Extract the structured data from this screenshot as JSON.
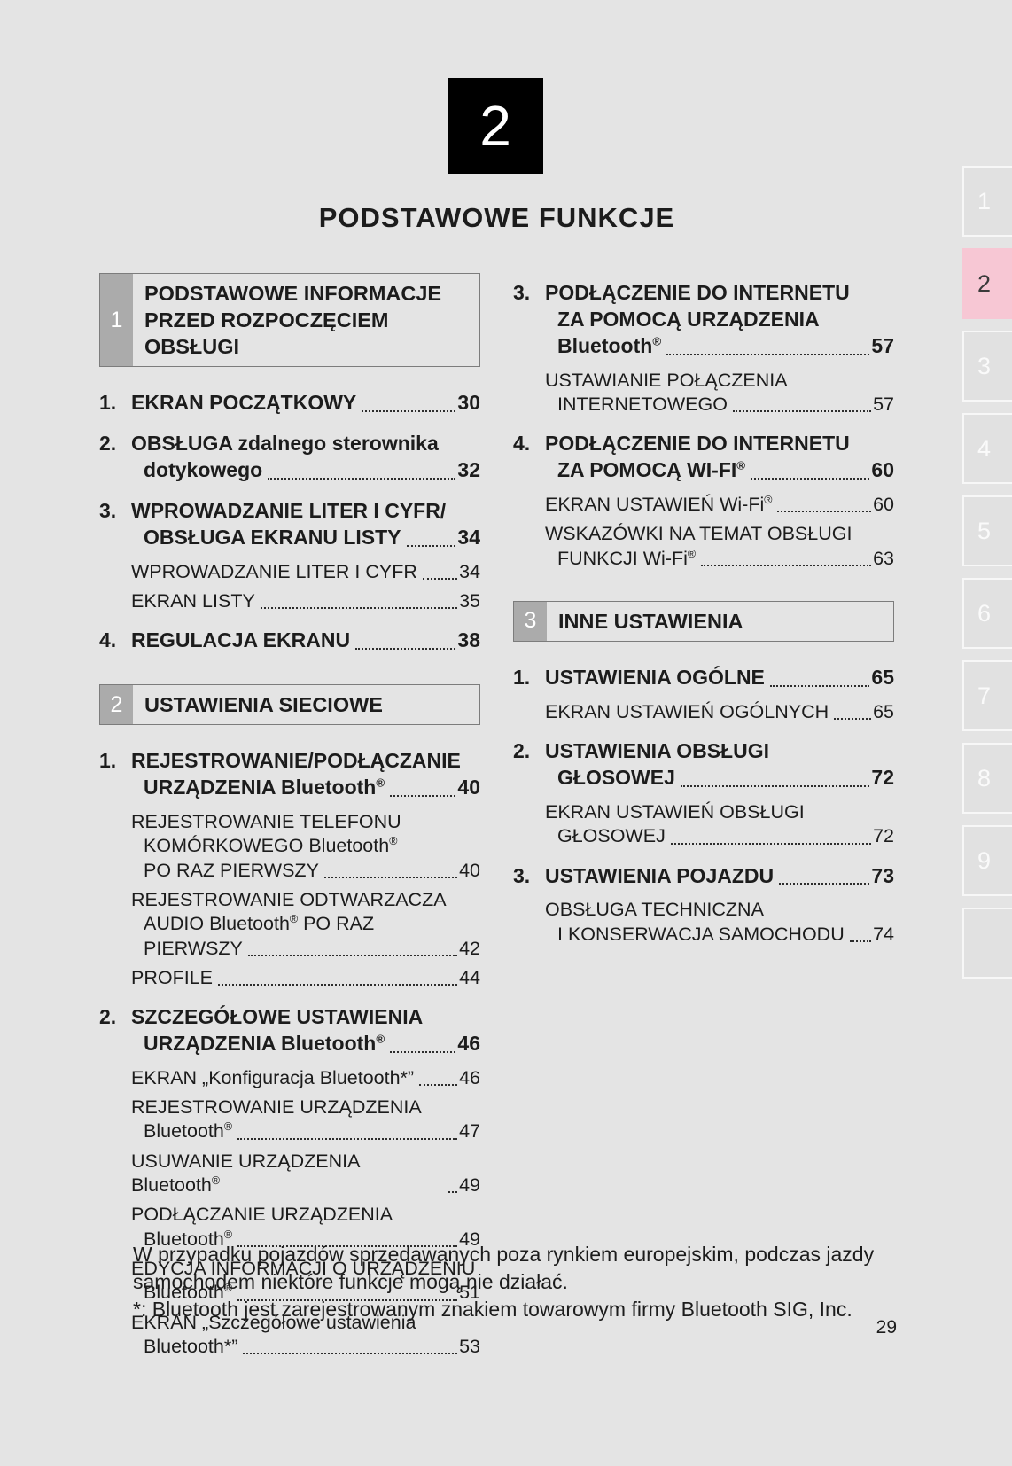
{
  "page": {
    "background": "#e4e4e4",
    "number": "29"
  },
  "chapter": {
    "number": "2",
    "title": "PODSTAWOWE FUNKCJE"
  },
  "tabs": {
    "active": "2",
    "active_color": "#f7c7d4",
    "items": [
      "1",
      "2",
      "3",
      "4",
      "5",
      "6",
      "7",
      "8",
      "9",
      ""
    ]
  },
  "toc": {
    "columns": [
      {
        "blocks": [
          {
            "type": "header",
            "num": "1",
            "title_lines": [
              "PODSTAWOWE INFORMACJE",
              "PRZED ROZPOCZĘCIEM OBSŁUGI"
            ]
          },
          {
            "type": "item",
            "num": "1.",
            "lines": [
              "EKRAN POCZĄTKOWY "
            ],
            "page": "30"
          },
          {
            "type": "item",
            "num": "2.",
            "lines": [
              "OBSŁUGA zdalnego sterownika",
              "dotykowego"
            ],
            "page": "32"
          },
          {
            "type": "item",
            "num": "3.",
            "lines": [
              "WPROWADZANIE LITER I CYFR/",
              "OBSŁUGA EKRANU LISTY"
            ],
            "page": "34"
          },
          {
            "type": "sub",
            "lines": [
              "WPROWADZANIE LITER I CYFR"
            ],
            "page": "34"
          },
          {
            "type": "sub",
            "lines": [
              "EKRAN LISTY "
            ],
            "page": "35"
          },
          {
            "type": "item",
            "num": "4.",
            "lines": [
              "REGULACJA EKRANU"
            ],
            "page": "38"
          },
          {
            "type": "header",
            "num": "2",
            "title_lines": [
              "USTAWIENIA SIECIOWE"
            ]
          },
          {
            "type": "item",
            "num": "1.",
            "lines": [
              "REJESTROWANIE/PODŁĄCZANIE",
              "URZĄDZENIA Bluetooth®"
            ],
            "page": "40"
          },
          {
            "type": "sub",
            "lines": [
              "REJESTROWANIE TELEFONU",
              "KOMÓRKOWEGO Bluetooth®",
              "PO RAZ PIERWSZY"
            ],
            "page": "40"
          },
          {
            "type": "sub",
            "lines": [
              "REJESTROWANIE ODTWARZACZA",
              "AUDIO Bluetooth® PO RAZ",
              "PIERWSZY"
            ],
            "page": "42"
          },
          {
            "type": "sub",
            "lines": [
              "PROFILE"
            ],
            "page": "44"
          },
          {
            "type": "item",
            "num": "2.",
            "lines": [
              "SZCZEGÓŁOWE USTAWIENIA",
              "URZĄDZENIA Bluetooth® "
            ],
            "page": "46"
          },
          {
            "type": "sub",
            "lines": [
              "EKRAN „Konfiguracja Bluetooth*”"
            ],
            "page": "46"
          },
          {
            "type": "sub",
            "lines": [
              "REJESTROWANIE URZĄDZENIA",
              "Bluetooth®"
            ],
            "page": "47"
          },
          {
            "type": "sub",
            "lines": [
              "USUWANIE URZĄDZENIA Bluetooth®"
            ],
            "page": "49"
          },
          {
            "type": "sub",
            "lines": [
              "PODŁĄCZANIE URZĄDZENIA",
              "Bluetooth®"
            ],
            "page": "49"
          },
          {
            "type": "sub",
            "lines": [
              "EDYCJA INFORMACJI O URZĄDZENIU",
              "Bluetooth® "
            ],
            "page": "51"
          },
          {
            "type": "sub",
            "lines": [
              "EKRAN „Szczegółowe ustawienia",
              "Bluetooth*”"
            ],
            "page": "53"
          }
        ]
      },
      {
        "blocks": [
          {
            "type": "item",
            "num": "3.",
            "lines": [
              "PODŁĄCZENIE DO INTERNETU",
              "ZA POMOCĄ URZĄDZENIA",
              "Bluetooth® "
            ],
            "page": "57"
          },
          {
            "type": "sub",
            "lines": [
              "USTAWIANIE POŁĄCZENIA",
              "INTERNETOWEGO "
            ],
            "page": "57"
          },
          {
            "type": "item",
            "num": "4.",
            "lines": [
              "PODŁĄCZENIE DO INTERNETU",
              "ZA POMOCĄ WI-FI® "
            ],
            "page": "60"
          },
          {
            "type": "sub",
            "lines": [
              "EKRAN USTAWIEŃ Wi-Fi® "
            ],
            "page": "60"
          },
          {
            "type": "sub",
            "lines": [
              "WSKAZÓWKI NA TEMAT OBSŁUGI",
              "FUNKCJI Wi-Fi® "
            ],
            "page": "63"
          },
          {
            "type": "header",
            "num": "3",
            "title_lines": [
              "INNE USTAWIENIA"
            ]
          },
          {
            "type": "item",
            "num": "1.",
            "lines": [
              "USTAWIENIA OGÓLNE"
            ],
            "page": "65"
          },
          {
            "type": "sub",
            "lines": [
              "EKRAN USTAWIEŃ OGÓLNYCH"
            ],
            "page": "65"
          },
          {
            "type": "item",
            "num": "2.",
            "lines": [
              "USTAWIENIA OBSŁUGI",
              "GŁOSOWEJ"
            ],
            "page": "72"
          },
          {
            "type": "sub",
            "lines": [
              "EKRAN USTAWIEŃ OBSŁUGI",
              "GŁOSOWEJ "
            ],
            "page": "72"
          },
          {
            "type": "item",
            "num": "3.",
            "lines": [
              "USTAWIENIA POJAZDU "
            ],
            "page": "73"
          },
          {
            "type": "sub",
            "lines": [
              "OBSŁUGA TECHNICZNA",
              "I KONSERWACJA SAMOCHODU "
            ],
            "page": "74"
          }
        ]
      }
    ]
  },
  "footer": {
    "lines": [
      "W przypadku pojazdów sprzedawanych poza rynkiem europejskim, podczas jazdy",
      "samochodem niektóre funkcje mogą nie działać.",
      "*: Bluetooth jest zarejestrowanym znakiem towarowym firmy Bluetooth SIG, Inc."
    ]
  }
}
